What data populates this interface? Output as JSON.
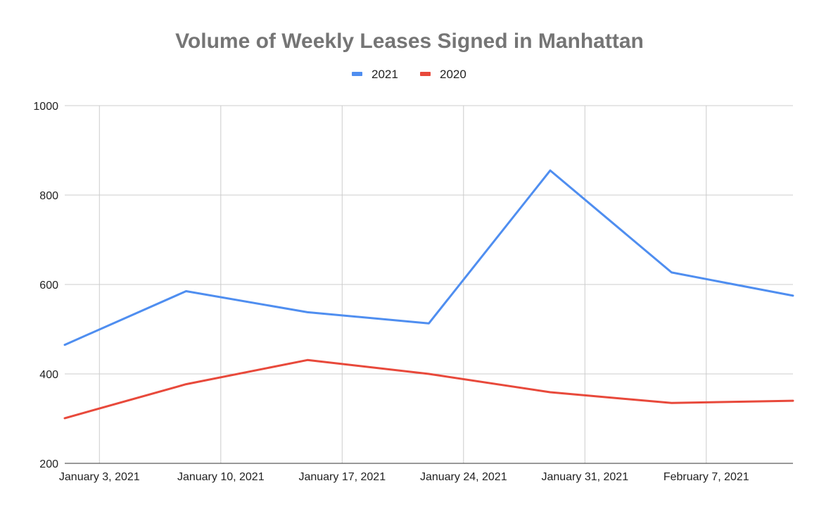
{
  "chart_data": {
    "type": "line",
    "title": "Volume of Weekly Leases Signed in Manhattan",
    "xlabel": "",
    "ylabel": "",
    "x": [
      "2021-01-01",
      "2021-01-08",
      "2021-01-15",
      "2021-01-22",
      "2021-01-29",
      "2021-02-05",
      "2021-02-12"
    ],
    "x_ticks": [
      {
        "date": "2021-01-03",
        "label": "January 3, 2021"
      },
      {
        "date": "2021-01-10",
        "label": "January 10, 2021"
      },
      {
        "date": "2021-01-17",
        "label": "January 17, 2021"
      },
      {
        "date": "2021-01-24",
        "label": "January 24, 2021"
      },
      {
        "date": "2021-01-31",
        "label": "January 31, 2021"
      },
      {
        "date": "2021-02-07",
        "label": "February 7, 2021"
      }
    ],
    "xlim": [
      "2021-01-01",
      "2021-02-12"
    ],
    "ylim": [
      200,
      1000
    ],
    "y_ticks": [
      200,
      400,
      600,
      800,
      1000
    ],
    "grid": true,
    "legend": "top-center",
    "series": [
      {
        "name": "2021",
        "color": "#4f8ef0",
        "values": [
          465,
          585,
          538,
          513,
          855,
          627,
          575
        ]
      },
      {
        "name": "2020",
        "color": "#e8493b",
        "values": [
          301,
          377,
          431,
          400,
          359,
          335,
          340
        ]
      }
    ]
  }
}
